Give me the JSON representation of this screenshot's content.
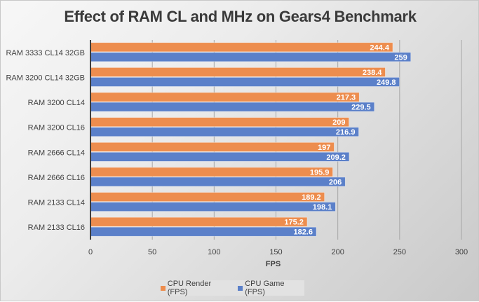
{
  "chart_data": {
    "type": "bar",
    "orientation": "horizontal",
    "title": "Effect of RAM CL and MHz on Gears4 Benchmark",
    "xlabel": "FPS",
    "ylabel": "",
    "xlim": [
      0,
      300
    ],
    "xticks": [
      "0",
      "50",
      "100",
      "150",
      "200",
      "250",
      "300"
    ],
    "grid": true,
    "legend_position": "bottom",
    "categories": [
      "RAM 3333 CL14 32GB",
      "RAM 3200 CL14 32GB",
      "RAM 3200 CL14",
      "RAM 3200 CL16",
      "RAM 2666 CL14",
      "RAM 2666 CL16",
      "RAM 2133 CL14",
      "RAM 2133 CL16"
    ],
    "series": [
      {
        "name": "CPU Render (FPS)",
        "color": "#ed8d4e",
        "values": [
          244.4,
          238.4,
          217.3,
          209,
          197,
          195.9,
          189.2,
          175.2
        ],
        "labels": [
          "244.4",
          "238.4",
          "217.3",
          "209",
          "197",
          "195.9",
          "189.2",
          "175.2"
        ]
      },
      {
        "name": "CPU Game (FPS)",
        "color": "#5b80c9",
        "values": [
          259,
          249.8,
          229.5,
          216.9,
          209.2,
          206,
          198.1,
          182.6
        ],
        "labels": [
          "259",
          "249.8",
          "229.5",
          "216.9",
          "209.2",
          "206",
          "198.1",
          "182.6"
        ]
      }
    ]
  }
}
